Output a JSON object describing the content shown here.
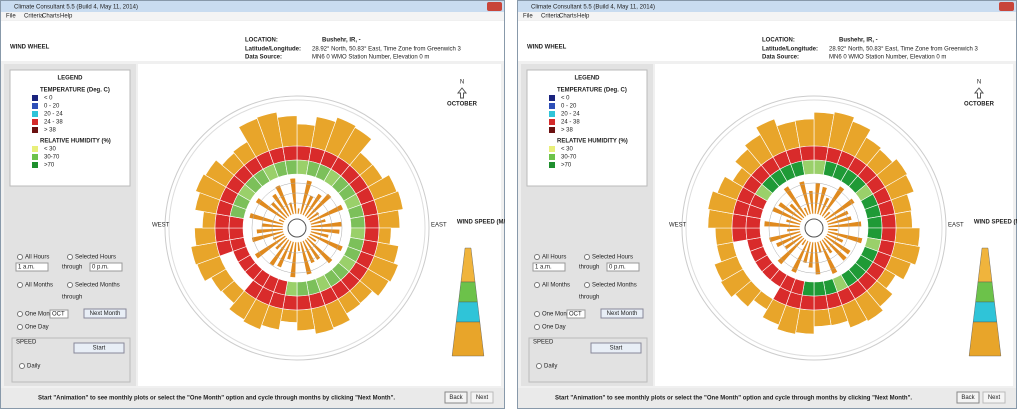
{
  "window": {
    "title": "Climate Consultant 5.5 (Build 4, May 11, 2014)",
    "menu": [
      "File",
      "Criteria",
      "Charts",
      "Help"
    ],
    "heading": "WIND WHEEL",
    "location_label": "LOCATION:",
    "location": "Bushehr, IR, -",
    "latlon_label": "Latitude/Longitude:",
    "latlon": "28.92° North, 50.83° East, Time Zone from Greenwich 3",
    "source_label": "Data Source:",
    "source": "MN6    0 WMO Station Number, Elevation 0 m",
    "legend": {
      "title": "LEGEND",
      "temp_title": "TEMPERATURE (Deg. C)",
      "temp_items": [
        "< 0",
        "0 - 20",
        "20 - 24",
        "24 - 38",
        "> 38"
      ],
      "rh_title": "RELATIVE HUMIDITY (%)",
      "rh_items": [
        "< 30",
        "30-70",
        ">70"
      ]
    },
    "north": "N",
    "month": "OCTOBER",
    "west": "WEST",
    "east": "EAST",
    "wind_speed": "WIND SPEED (M/S)",
    "controls": {
      "all_hours": "All Hours",
      "selected_hours": "Selected Hours",
      "from_hour": "1 a.m.",
      "through": "through",
      "to_hour": "0 p.m.",
      "all_months": "All Months",
      "selected_months": "Selected Months",
      "one_month": "One Month",
      "month_value": "OCT",
      "next_month": "Next Month",
      "one_day": "One Day",
      "speed": "SPEED",
      "start": "Start",
      "daily": "Daily"
    },
    "footer": "Start \"Animation\" to see monthly plots or select the \"One Month\" option and cycle through months by clicking \"Next Month\".",
    "back": "Back",
    "next": "Next"
  }
}
